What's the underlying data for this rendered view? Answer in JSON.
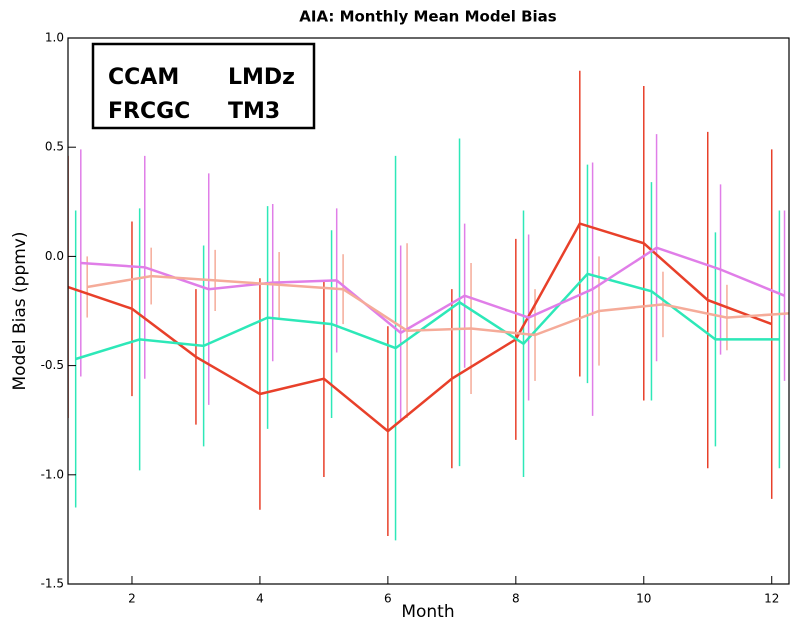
{
  "chart_data": {
    "type": "line",
    "title": "AIA: Monthly Mean Model Bias",
    "xlabel": "Month",
    "ylabel": "Model Bias (ppmv)",
    "xlim": [
      1,
      12.27
    ],
    "ylim": [
      -1.5,
      1.0
    ],
    "xticks": [
      2,
      4,
      6,
      8,
      10,
      12
    ],
    "yticks": [
      {
        "value": 1.0,
        "label": "1.0"
      },
      {
        "value": 0.5,
        "label": "0.5"
      },
      {
        "value": 0.0,
        "label": "0.0"
      },
      -0.5,
      {
        "value": -1.0,
        "label": "-1.0"
      },
      {
        "value": -1.5,
        "label": "-1.5"
      }
    ],
    "legend": "upper left",
    "series": [
      {
        "name": "CCAM",
        "color": "#e8402a",
        "x": [
          1,
          2,
          3,
          4,
          5,
          6,
          7,
          8,
          9,
          10,
          11,
          12
        ],
        "values": [
          -0.14,
          -0.24,
          -0.46,
          -0.63,
          -0.56,
          -0.8,
          -0.56,
          -0.38,
          0.15,
          0.06,
          -0.2,
          -0.31
        ],
        "errors": [
          0.6,
          0.4,
          0.31,
          0.53,
          0.45,
          0.48,
          0.41,
          0.46,
          0.7,
          0.72,
          0.77,
          0.8
        ]
      },
      {
        "name": "LMDz",
        "color": "#2de8b8",
        "x": [
          1.12,
          2.12,
          3.12,
          4.12,
          5.12,
          6.12,
          7.12,
          8.12,
          9.12,
          10.12,
          11.12,
          12.12
        ],
        "values": [
          -0.47,
          -0.38,
          -0.41,
          -0.28,
          -0.31,
          -0.42,
          -0.21,
          -0.4,
          -0.08,
          -0.16,
          -0.38,
          -0.38
        ],
        "errors": [
          0.68,
          0.6,
          0.46,
          0.51,
          0.43,
          0.88,
          0.75,
          0.61,
          0.5,
          0.5,
          0.49,
          0.59
        ]
      },
      {
        "name": "FRCGC",
        "color": "#e07ee8",
        "x": [
          1.2,
          2.2,
          3.2,
          4.2,
          5.2,
          6.2,
          7.2,
          8.2,
          9.2,
          10.2,
          11.2,
          12.2
        ],
        "values": [
          -0.03,
          -0.05,
          -0.15,
          -0.12,
          -0.11,
          -0.35,
          -0.18,
          -0.28,
          -0.15,
          0.04,
          -0.06,
          -0.18
        ],
        "errors": [
          0.52,
          0.51,
          0.53,
          0.36,
          0.33,
          0.4,
          0.33,
          0.38,
          0.58,
          0.52,
          0.39,
          0.39
        ]
      },
      {
        "name": "TM3",
        "color": "#f5ab99",
        "x": [
          1.3,
          2.3,
          3.3,
          4.3,
          5.3,
          6.3,
          7.3,
          8.3,
          9.3,
          10.3,
          11.3,
          12.3
        ],
        "values": [
          -0.14,
          -0.09,
          -0.11,
          -0.13,
          -0.15,
          -0.34,
          -0.33,
          -0.36,
          -0.25,
          -0.22,
          -0.28,
          -0.26
        ],
        "errors": [
          0.14,
          0.13,
          0.14,
          0.15,
          0.16,
          0.4,
          0.3,
          0.21,
          0.25,
          0.15,
          0.15,
          0.22
        ]
      }
    ]
  }
}
